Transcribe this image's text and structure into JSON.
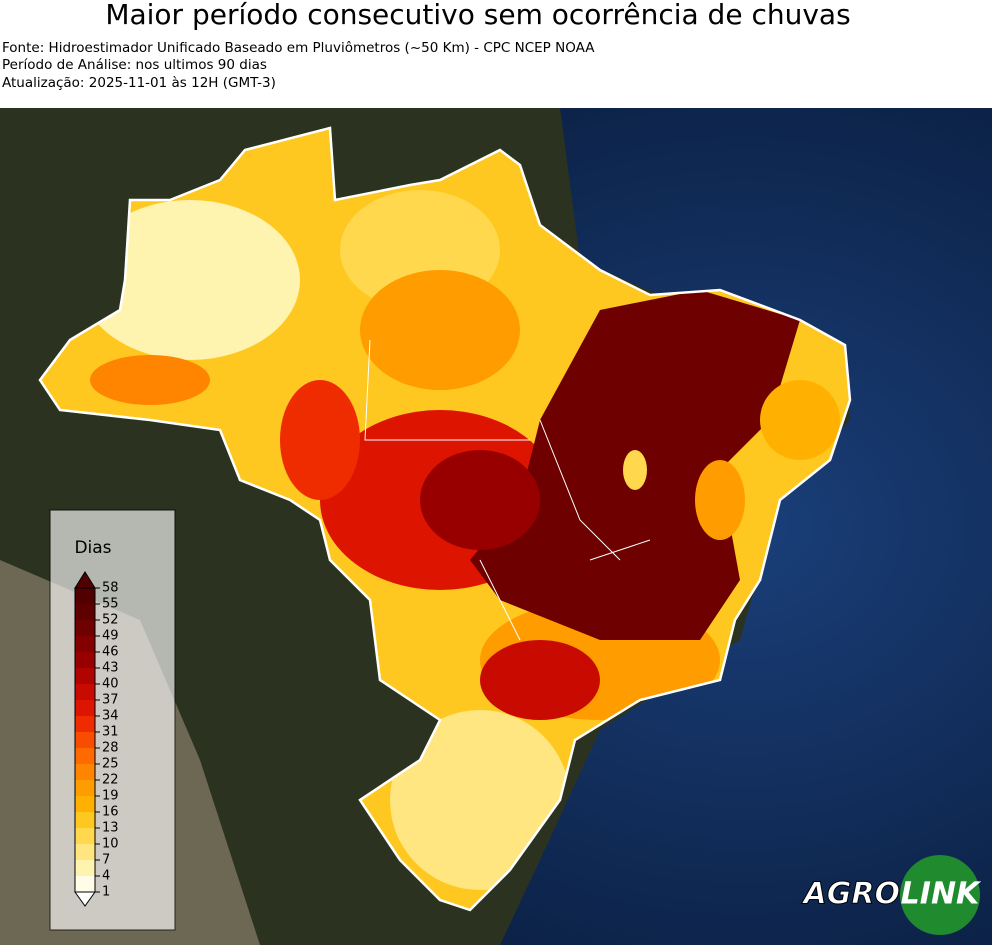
{
  "header": {
    "title": "Maior período consecutivo sem ocorrência de chuvas",
    "lines": [
      "Fonte: Hidroestimador Unificado Baseado em Pluviômetros (~50 Km) - CPC NCEP NOAA",
      "Período de Análise: nos ultimos 90 dias",
      "Atualização: 2025-11-01 às 12H (GMT-3)"
    ]
  },
  "legend": {
    "title": "Dias",
    "ticks": [
      1,
      4,
      7,
      10,
      13,
      16,
      19,
      22,
      25,
      28,
      31,
      34,
      37,
      40,
      43,
      46,
      49,
      52,
      55,
      58
    ],
    "colors": [
      "#fffde8",
      "#fff3b0",
      "#ffe680",
      "#ffd84d",
      "#ffc820",
      "#ffb000",
      "#ff9c00",
      "#ff8400",
      "#ff6a00",
      "#f84c00",
      "#ee2c00",
      "#dd1400",
      "#c80a00",
      "#b00400",
      "#980000",
      "#820000",
      "#6e0000",
      "#5e0000",
      "#500000"
    ]
  },
  "logo": {
    "left": "AGRO",
    "right": "LINK"
  }
}
